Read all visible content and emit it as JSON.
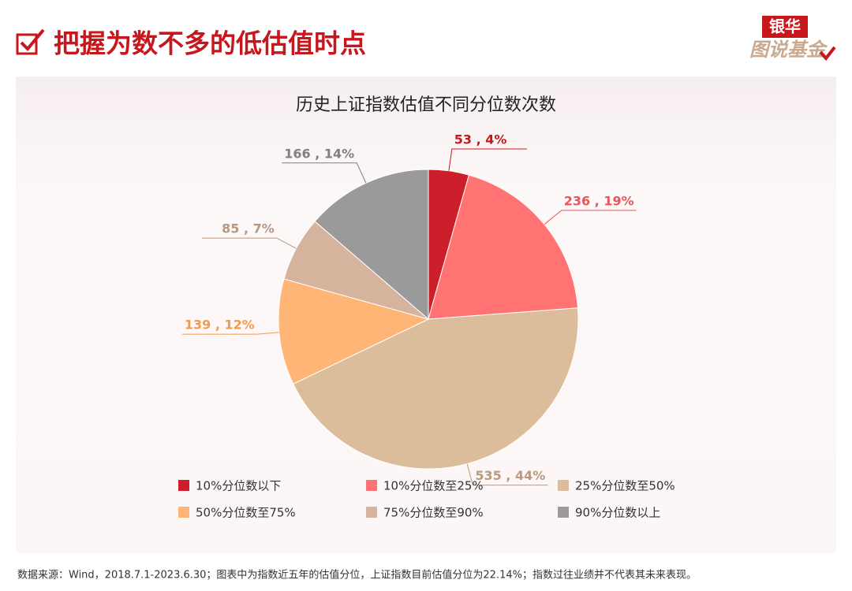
{
  "header": {
    "title": "把握为数不多的低估值时点",
    "logo_top": "银华",
    "logo_bottom": "图说基金"
  },
  "chart_data": {
    "type": "pie",
    "title": "历史上证指数估值不同分位数次数",
    "categories": [
      "10%分位数以下",
      "10%分位数至25%",
      "25%分位数至50%",
      "50%分位数至75%",
      "75%分位数至90%",
      "90%分位数以上"
    ],
    "values": [
      53,
      236,
      535,
      139,
      85,
      166
    ],
    "value_labels": [
      "53 , 4%",
      "236 , 19%",
      "535 , 44%",
      "139 , 12%",
      "85 , 7%",
      "166 , 14%"
    ],
    "colors": [
      "#cc1f2b",
      "#ff7373",
      "#dbbc9b",
      "#ffb576",
      "#d6b39d",
      "#9a9a9a"
    ],
    "label_colors": [
      "#c8161d",
      "#e8555a",
      "#b89a7c",
      "#f29a4e",
      "#b8957f",
      "#7f7f7f"
    ]
  },
  "footnote": "数据来源：Wind，2018.7.1-2023.6.30；图表中为指数近五年的估值分位，上证指数目前估值分位为22.14%；指数过往业绩并不代表其未来表现。"
}
